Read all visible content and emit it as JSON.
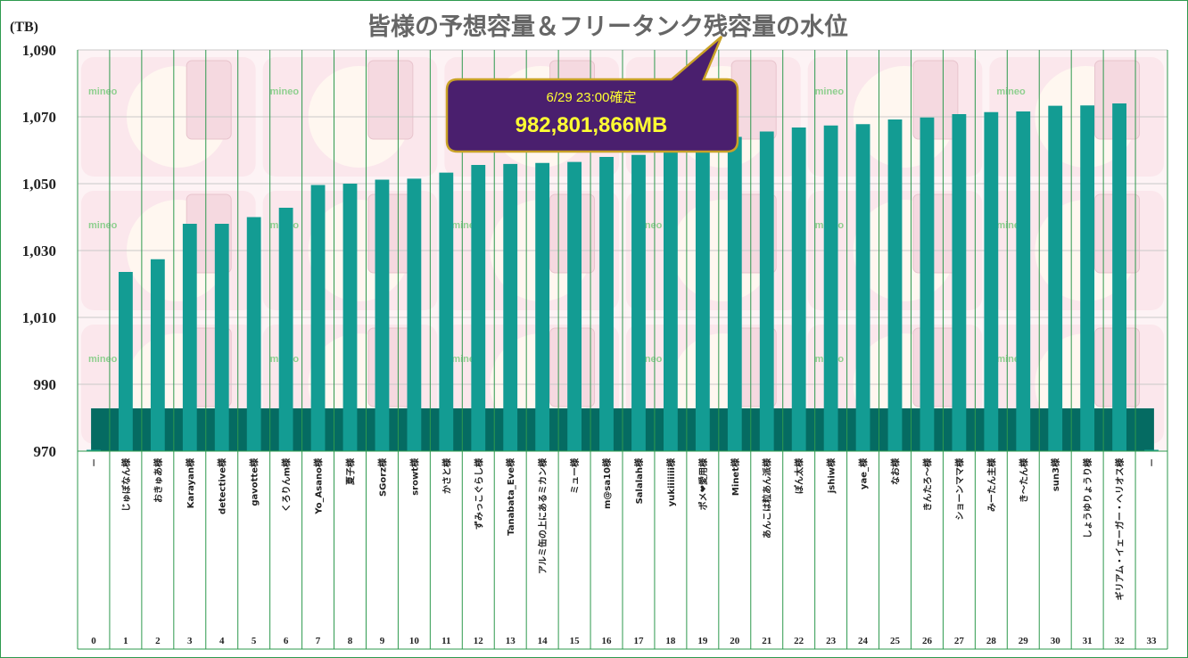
{
  "chart_data": {
    "type": "bar",
    "title": "皆様の予想容量＆フリータンク残容量の水位",
    "ylabel": "(TB)",
    "ylim": [
      970,
      1090
    ],
    "yticks": [
      970,
      990,
      1010,
      1030,
      1050,
      1070,
      1090
    ],
    "ytick_labels": [
      "970",
      "990",
      "1,010",
      "1,030",
      "1,050",
      "1,070",
      "1,090"
    ],
    "grid": true,
    "categories": [
      "0",
      "1",
      "2",
      "3",
      "4",
      "5",
      "6",
      "7",
      "8",
      "9",
      "10",
      "11",
      "12",
      "13",
      "14",
      "15",
      "16",
      "17",
      "18",
      "19",
      "20",
      "21",
      "22",
      "23",
      "24",
      "25",
      "26",
      "27",
      "28",
      "29",
      "30",
      "31",
      "32",
      "33"
    ],
    "names": [
      "－",
      "じゅぼなん様",
      "おきゅあ様",
      "Karayan様",
      "detective様",
      "gavotte様",
      "くろりんm様",
      "Yo_Asano様",
      "夏子様",
      "SGorz様",
      "srowt様",
      "かさと様",
      "ずみっこぐらし様",
      "Tanabata_Eve様",
      "アルミ缶の上にあるミカン様",
      "ミュー様",
      "m@sa10様",
      "Salalah様",
      "yukiiiiiii様",
      "ポメ❤愛用様",
      "Minet様",
      "あんこは粒あん派様",
      "ぽん太様",
      "jshiw様",
      "yae_様",
      "なお様",
      "きんたろ～様",
      "ショーンママ様",
      "みーたん主様",
      "き～たん様",
      "sun3様",
      "しょうゆりょうり様",
      "ギリアム・イェーガー・ヘリオス様",
      "－"
    ],
    "series": [
      {
        "name": "予想容量",
        "values": [
          970.4,
          1023.6,
          1027.4,
          1038.0,
          1038.0,
          1040.0,
          1042.8,
          1049.6,
          1050.0,
          1051.2,
          1051.5,
          1053.3,
          1055.6,
          1055.9,
          1056.2,
          1056.5,
          1058.0,
          1058.6,
          1061.0,
          1062.0,
          1064.0,
          1065.6,
          1066.8,
          1067.4,
          1067.8,
          1069.2,
          1069.8,
          1070.8,
          1071.4,
          1071.6,
          1073.3,
          1073.4,
          1074.0,
          970.4
        ],
        "color": "#139c93"
      },
      {
        "name": "フリータンク残容量",
        "value": 982.8,
        "color": "#056b62"
      }
    ],
    "callout": {
      "date_text": "6/29 23:00確定",
      "value_text": "982,801,866MB",
      "fill": "#4a1f6e",
      "border": "#c9a227",
      "text_color": "#ffff33"
    },
    "background_watermark": "mineo"
  }
}
